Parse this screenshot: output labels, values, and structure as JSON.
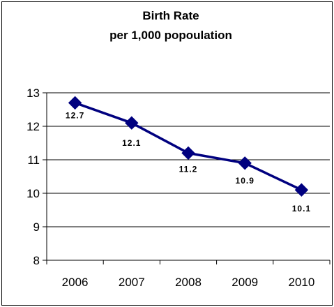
{
  "chart_data": {
    "type": "line",
    "title": "Birth Rate",
    "subtitle": "per 1,000 popoulation",
    "xlabel": "",
    "ylabel": "",
    "categories": [
      "2006",
      "2007",
      "2008",
      "2009",
      "2010"
    ],
    "series": [
      {
        "values": [
          12.7,
          12.1,
          11.2,
          10.9,
          10.1
        ],
        "labels": [
          "12.7",
          "12.1",
          "11.2",
          "10.9",
          "10.1"
        ],
        "color": "#00007f",
        "marker": "diamond"
      }
    ],
    "ylim": [
      8,
      13
    ],
    "yticks": [
      8,
      9,
      10,
      11,
      12,
      13
    ],
    "grid": true,
    "legend": "none"
  }
}
